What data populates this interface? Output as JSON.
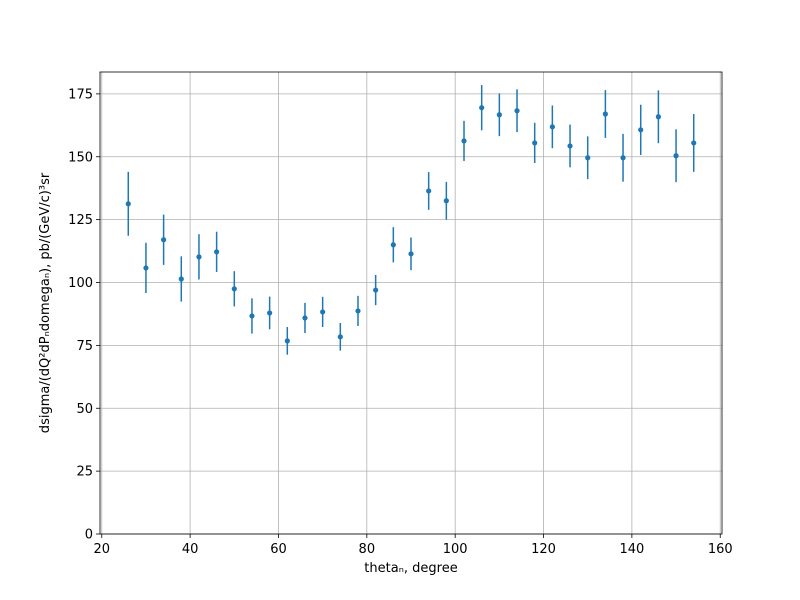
{
  "chart_data": {
    "type": "errorbar",
    "xlabel": "thetaₙ, degree",
    "ylabel": "dsigma/(dQ²dPₙdomegaₙ), pb/(GeV/c)³sr",
    "color": "#1f77b4",
    "grid": true,
    "x": [
      26,
      30,
      34,
      38,
      42,
      46,
      50,
      54,
      58,
      62,
      66,
      70,
      74,
      78,
      82,
      86,
      90,
      94,
      98,
      102,
      106,
      110,
      114,
      118,
      122,
      126,
      130,
      134,
      138,
      142,
      146,
      150,
      154
    ],
    "values": [
      131.3,
      105.8,
      117,
      101.4,
      110.2,
      112.2,
      97.5,
      86.7,
      87.9,
      76.8,
      85.9,
      88.3,
      78.4,
      88.7,
      97,
      115,
      111.4,
      136.4,
      132.5,
      156.3,
      169.5,
      166.7,
      168.3,
      155.5,
      161.9,
      154.3,
      149.6,
      167,
      149.6,
      160.7,
      165.9,
      150.4,
      155.5
    ],
    "errors": [
      12.7,
      10,
      10,
      9,
      9,
      8,
      7,
      7,
      6.5,
      5.5,
      6,
      6,
      5.5,
      6,
      6,
      7,
      6.5,
      7.5,
      7.5,
      8,
      9,
      8.5,
      8.5,
      8,
      8.5,
      8.5,
      8.5,
      9.5,
      9.5,
      10,
      10.5,
      10.5,
      11.5
    ],
    "xlim": [
      19.6,
      160.4
    ],
    "xticks": [
      20,
      40,
      60,
      80,
      100,
      120,
      140,
      160
    ],
    "ylim": [
      0,
      183.7
    ],
    "yticks": [
      0,
      25,
      50,
      75,
      100,
      125,
      150,
      175
    ]
  }
}
